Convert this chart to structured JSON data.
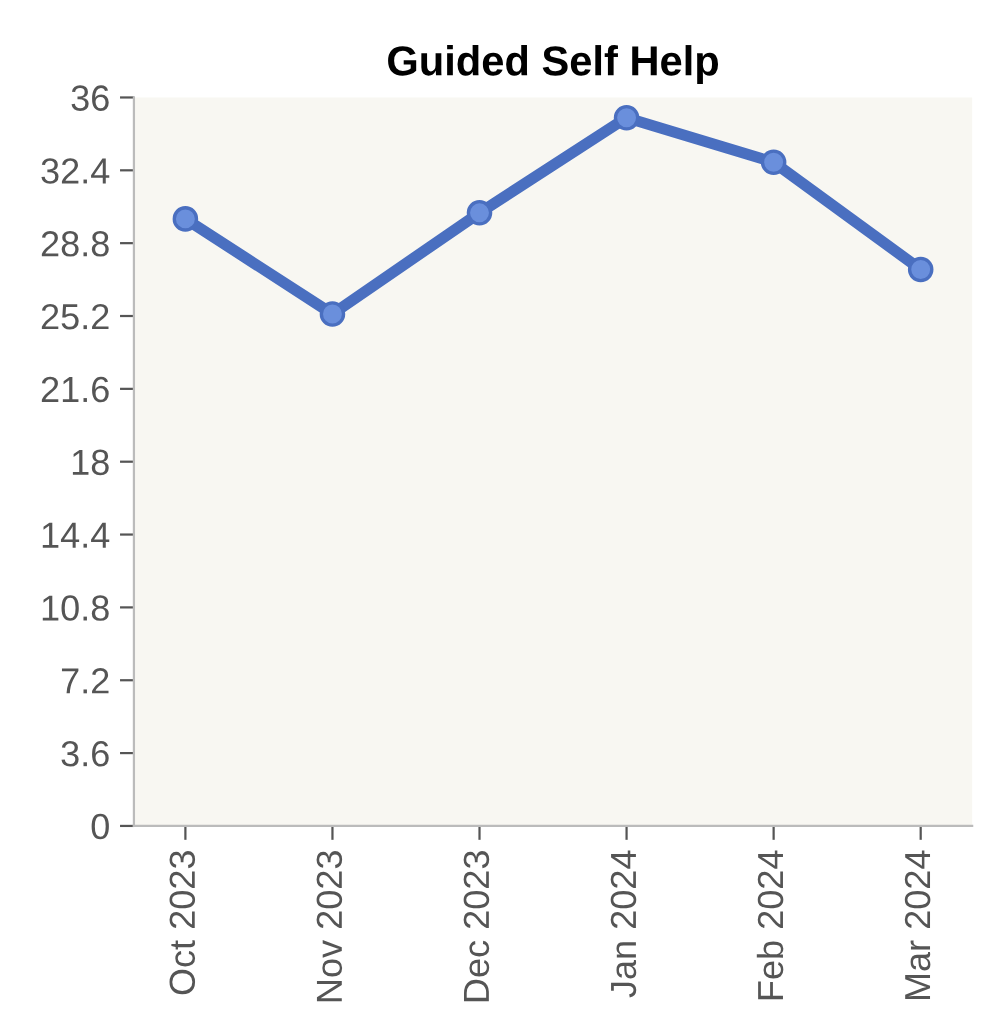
{
  "chart_data": {
    "type": "line",
    "title": "Guided Self Help",
    "categories": [
      "Oct 2023",
      "Nov 2023",
      "Dec 2023",
      "Jan 2024",
      "Feb 2024",
      "Mar 2024"
    ],
    "series": [
      {
        "color": "#4a6fc0",
        "values": [
          30.0,
          25.3,
          30.3,
          35.0,
          32.8,
          27.5
        ]
      }
    ],
    "ylim": [
      0,
      36
    ],
    "yticks": [
      0,
      3.6,
      7.2,
      10.8,
      14.4,
      18,
      21.6,
      25.2,
      28.8,
      32.4,
      36
    ],
    "marker": "circle",
    "line_style": "solid",
    "grid": false,
    "legend": false
  }
}
